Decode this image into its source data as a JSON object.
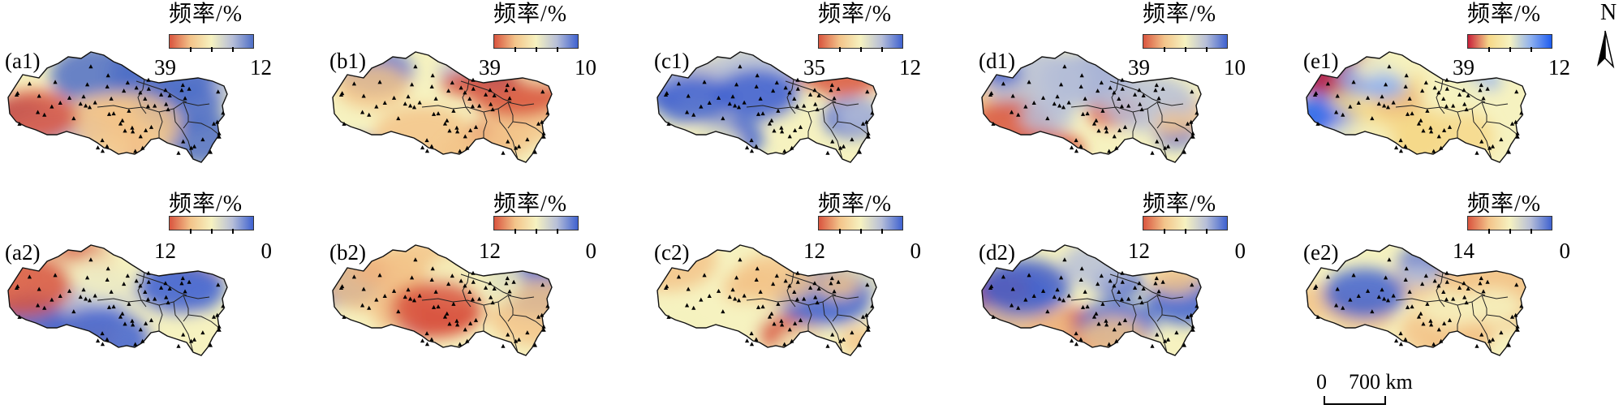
{
  "legend_title": "频率/%",
  "north_label": "N",
  "scale_bar": {
    "zero": "0",
    "label": "700 km"
  },
  "panels": [
    {
      "id": "a1",
      "label": "(a1)",
      "max": "39",
      "min": "12",
      "ramp": [
        "#d9553f",
        "#f3c48a",
        "#f6f2c0",
        "#b7bfd8",
        "#4f6fc7"
      ]
    },
    {
      "id": "b1",
      "label": "(b1)",
      "max": "39",
      "min": "10",
      "ramp": [
        "#d9553f",
        "#f3c48a",
        "#f6f2c0",
        "#b7bfd8",
        "#3f62d0"
      ]
    },
    {
      "id": "c1",
      "label": "(c1)",
      "max": "35",
      "min": "12",
      "ramp": [
        "#d9553f",
        "#f3c48a",
        "#f6f2c0",
        "#b7bfd8",
        "#3f62d0"
      ]
    },
    {
      "id": "d1",
      "label": "(d1)",
      "max": "39",
      "min": "10",
      "ramp": [
        "#d9553f",
        "#f3c48a",
        "#f6f2c0",
        "#b7bfd8",
        "#3f62d0"
      ]
    },
    {
      "id": "e1",
      "label": "(e1)",
      "max": "39",
      "min": "12",
      "ramp": [
        "#c8203a",
        "#f6d889",
        "#f6f2c0",
        "#8fb1ef",
        "#1e5cf0"
      ]
    },
    {
      "id": "a2",
      "label": "(a2)",
      "max": "12",
      "min": "0",
      "ramp": [
        "#d9553f",
        "#f3c48a",
        "#f6f2c0",
        "#b7bfd8",
        "#3f62d0"
      ]
    },
    {
      "id": "b2",
      "label": "(b2)",
      "max": "12",
      "min": "0",
      "ramp": [
        "#d9553f",
        "#f3c48a",
        "#f6f2c0",
        "#b7bfd8",
        "#3f62d0"
      ]
    },
    {
      "id": "c2",
      "label": "(c2)",
      "max": "12",
      "min": "0",
      "ramp": [
        "#d9553f",
        "#f3c48a",
        "#f6f2c0",
        "#b7bfd8",
        "#3f62d0"
      ]
    },
    {
      "id": "d2",
      "label": "(d2)",
      "max": "12",
      "min": "0",
      "ramp": [
        "#d9553f",
        "#f3c48a",
        "#f6f2c0",
        "#b7bfd8",
        "#3f62d0"
      ]
    },
    {
      "id": "e2",
      "label": "(e2)",
      "max": "14",
      "min": "0",
      "ramp": [
        "#d9553f",
        "#f3c48a",
        "#f6f2c0",
        "#b7bfd8",
        "#3f62d0"
      ]
    }
  ]
}
